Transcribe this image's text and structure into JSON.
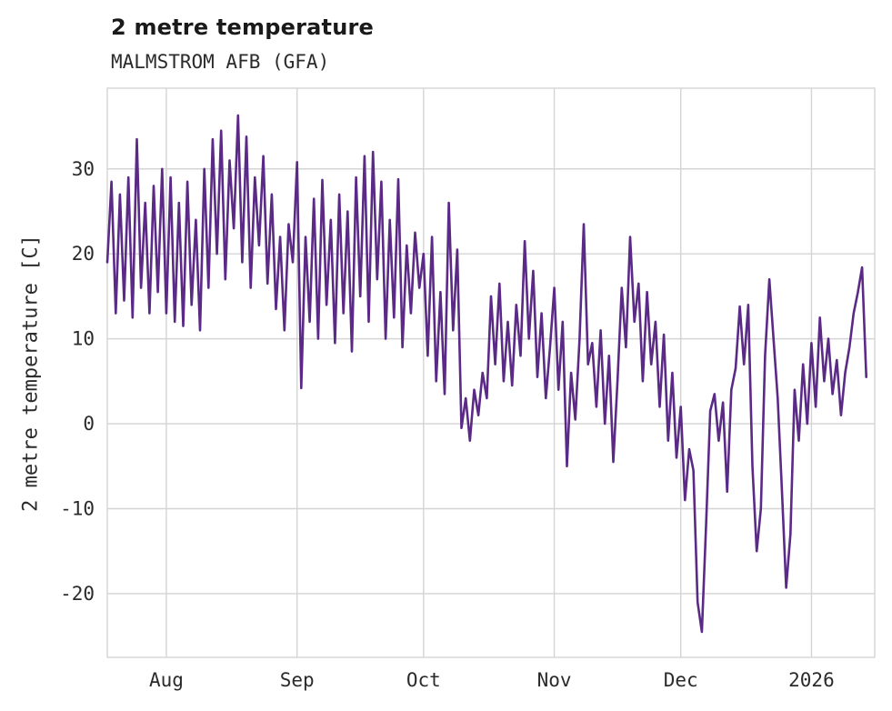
{
  "header": {
    "title": "2 metre temperature",
    "subtitle": "MALMSTROM AFB (GFA)"
  },
  "chart_data": {
    "type": "line",
    "title": "2 metre temperature",
    "subtitle": "MALMSTROM AFB (GFA)",
    "xlabel": "",
    "ylabel": "2 metre temperature [C]",
    "line_color": "#5b2a86",
    "grid_color": "#d4d4d4",
    "background_color": "#ffffff",
    "legend": "none",
    "grid": true,
    "x_unit": "days from 2025-07-18 (estimated)",
    "xlim": [
      0,
      182
    ],
    "ylim": [
      -27.5,
      39.5
    ],
    "y_ticks": [
      -20,
      -10,
      0,
      10,
      20,
      30
    ],
    "x_ticks": [
      {
        "label": "Aug",
        "day": 14
      },
      {
        "label": "Sep",
        "day": 45
      },
      {
        "label": "Oct",
        "day": 75
      },
      {
        "label": "Nov",
        "day": 106
      },
      {
        "label": "Dec",
        "day": 136
      },
      {
        "label": "2026",
        "day": 167
      }
    ],
    "series": [
      {
        "name": "2 metre temperature",
        "points": [
          [
            0,
            19
          ],
          [
            1,
            28.5
          ],
          [
            2,
            13
          ],
          [
            3,
            27
          ],
          [
            4,
            14.5
          ],
          [
            5,
            29
          ],
          [
            6,
            12.5
          ],
          [
            7,
            33.5
          ],
          [
            8,
            16
          ],
          [
            9,
            26
          ],
          [
            10,
            13
          ],
          [
            11,
            28
          ],
          [
            12,
            15.5
          ],
          [
            13,
            30
          ],
          [
            14,
            13
          ],
          [
            15,
            29
          ],
          [
            16,
            12
          ],
          [
            17,
            26
          ],
          [
            18,
            11.5
          ],
          [
            19,
            28.5
          ],
          [
            20,
            14
          ],
          [
            21,
            24
          ],
          [
            22,
            11
          ],
          [
            23,
            30
          ],
          [
            24,
            16
          ],
          [
            25,
            33.5
          ],
          [
            26,
            20
          ],
          [
            27,
            34.5
          ],
          [
            28,
            17
          ],
          [
            29,
            31
          ],
          [
            30,
            23
          ],
          [
            31,
            36.3
          ],
          [
            32,
            19
          ],
          [
            33,
            33.8
          ],
          [
            34,
            16
          ],
          [
            35,
            29
          ],
          [
            36,
            21
          ],
          [
            37,
            31.5
          ],
          [
            38,
            16.5
          ],
          [
            39,
            27
          ],
          [
            40,
            13.5
          ],
          [
            41,
            22
          ],
          [
            42,
            11
          ],
          [
            43,
            23.5
          ],
          [
            44,
            19
          ],
          [
            45,
            30.8
          ],
          [
            46,
            4.2
          ],
          [
            47,
            22
          ],
          [
            48,
            12
          ],
          [
            49,
            26.5
          ],
          [
            50,
            10
          ],
          [
            51,
            28.7
          ],
          [
            52,
            14
          ],
          [
            53,
            24
          ],
          [
            54,
            9.5
          ],
          [
            55,
            27
          ],
          [
            56,
            13
          ],
          [
            57,
            25
          ],
          [
            58,
            8.5
          ],
          [
            59,
            29
          ],
          [
            60,
            15
          ],
          [
            61,
            31.5
          ],
          [
            62,
            12
          ],
          [
            63,
            32
          ],
          [
            64,
            17
          ],
          [
            65,
            28.5
          ],
          [
            66,
            10
          ],
          [
            67,
            24
          ],
          [
            68,
            12.5
          ],
          [
            69,
            28.8
          ],
          [
            70,
            9
          ],
          [
            71,
            21
          ],
          [
            72,
            13
          ],
          [
            73,
            22.5
          ],
          [
            74,
            16
          ],
          [
            75,
            20
          ],
          [
            76,
            8
          ],
          [
            77,
            22
          ],
          [
            78,
            5
          ],
          [
            79,
            15.5
          ],
          [
            80,
            3.5
          ],
          [
            81,
            26
          ],
          [
            82,
            11
          ],
          [
            83,
            20.5
          ],
          [
            84,
            -0.5
          ],
          [
            85,
            3
          ],
          [
            86,
            -2
          ],
          [
            87,
            4
          ],
          [
            88,
            1
          ],
          [
            89,
            6
          ],
          [
            90,
            3
          ],
          [
            91,
            15
          ],
          [
            92,
            7
          ],
          [
            93,
            16.5
          ],
          [
            94,
            5
          ],
          [
            95,
            12
          ],
          [
            96,
            4.5
          ],
          [
            97,
            14
          ],
          [
            98,
            8
          ],
          [
            99,
            21.5
          ],
          [
            100,
            10
          ],
          [
            101,
            18
          ],
          [
            102,
            5.5
          ],
          [
            103,
            13
          ],
          [
            104,
            3
          ],
          [
            105,
            9
          ],
          [
            106,
            16
          ],
          [
            107,
            4
          ],
          [
            108,
            12
          ],
          [
            109,
            -5
          ],
          [
            110,
            6
          ],
          [
            111,
            0.5
          ],
          [
            112,
            10
          ],
          [
            113,
            23.5
          ],
          [
            114,
            7
          ],
          [
            115,
            9.5
          ],
          [
            116,
            2
          ],
          [
            117,
            11
          ],
          [
            118,
            0
          ],
          [
            119,
            8
          ],
          [
            120,
            -4.5
          ],
          [
            121,
            5
          ],
          [
            122,
            16
          ],
          [
            123,
            9
          ],
          [
            124,
            22
          ],
          [
            125,
            12
          ],
          [
            126,
            16.5
          ],
          [
            127,
            5
          ],
          [
            128,
            15.5
          ],
          [
            129,
            7
          ],
          [
            130,
            12
          ],
          [
            131,
            2
          ],
          [
            132,
            10.5
          ],
          [
            133,
            -2
          ],
          [
            134,
            6
          ],
          [
            135,
            -4
          ],
          [
            136,
            2
          ],
          [
            137,
            -9
          ],
          [
            138,
            -3
          ],
          [
            139,
            -5.5
          ],
          [
            140,
            -21
          ],
          [
            141,
            -24.5
          ],
          [
            142,
            -12
          ],
          [
            143,
            1.5
          ],
          [
            144,
            3.5
          ],
          [
            145,
            -2
          ],
          [
            146,
            2.5
          ],
          [
            147,
            -8
          ],
          [
            148,
            4
          ],
          [
            149,
            6.5
          ],
          [
            150,
            13.8
          ],
          [
            151,
            7
          ],
          [
            152,
            14
          ],
          [
            153,
            -5
          ],
          [
            154,
            -15
          ],
          [
            155,
            -10
          ],
          [
            156,
            8
          ],
          [
            157,
            17
          ],
          [
            158,
            10
          ],
          [
            159,
            3
          ],
          [
            160,
            -8
          ],
          [
            161,
            -19.3
          ],
          [
            162,
            -13
          ],
          [
            163,
            4
          ],
          [
            164,
            -2
          ],
          [
            165,
            7
          ],
          [
            166,
            0
          ],
          [
            167,
            9.5
          ],
          [
            168,
            2
          ],
          [
            169,
            12.5
          ],
          [
            170,
            5
          ],
          [
            171,
            10
          ],
          [
            172,
            3.5
          ],
          [
            173,
            7.5
          ],
          [
            174,
            1
          ],
          [
            175,
            6
          ],
          [
            176,
            9
          ],
          [
            177,
            13
          ],
          [
            178,
            15.5
          ],
          [
            179,
            18.4
          ],
          [
            180,
            5.5
          ]
        ]
      }
    ]
  }
}
